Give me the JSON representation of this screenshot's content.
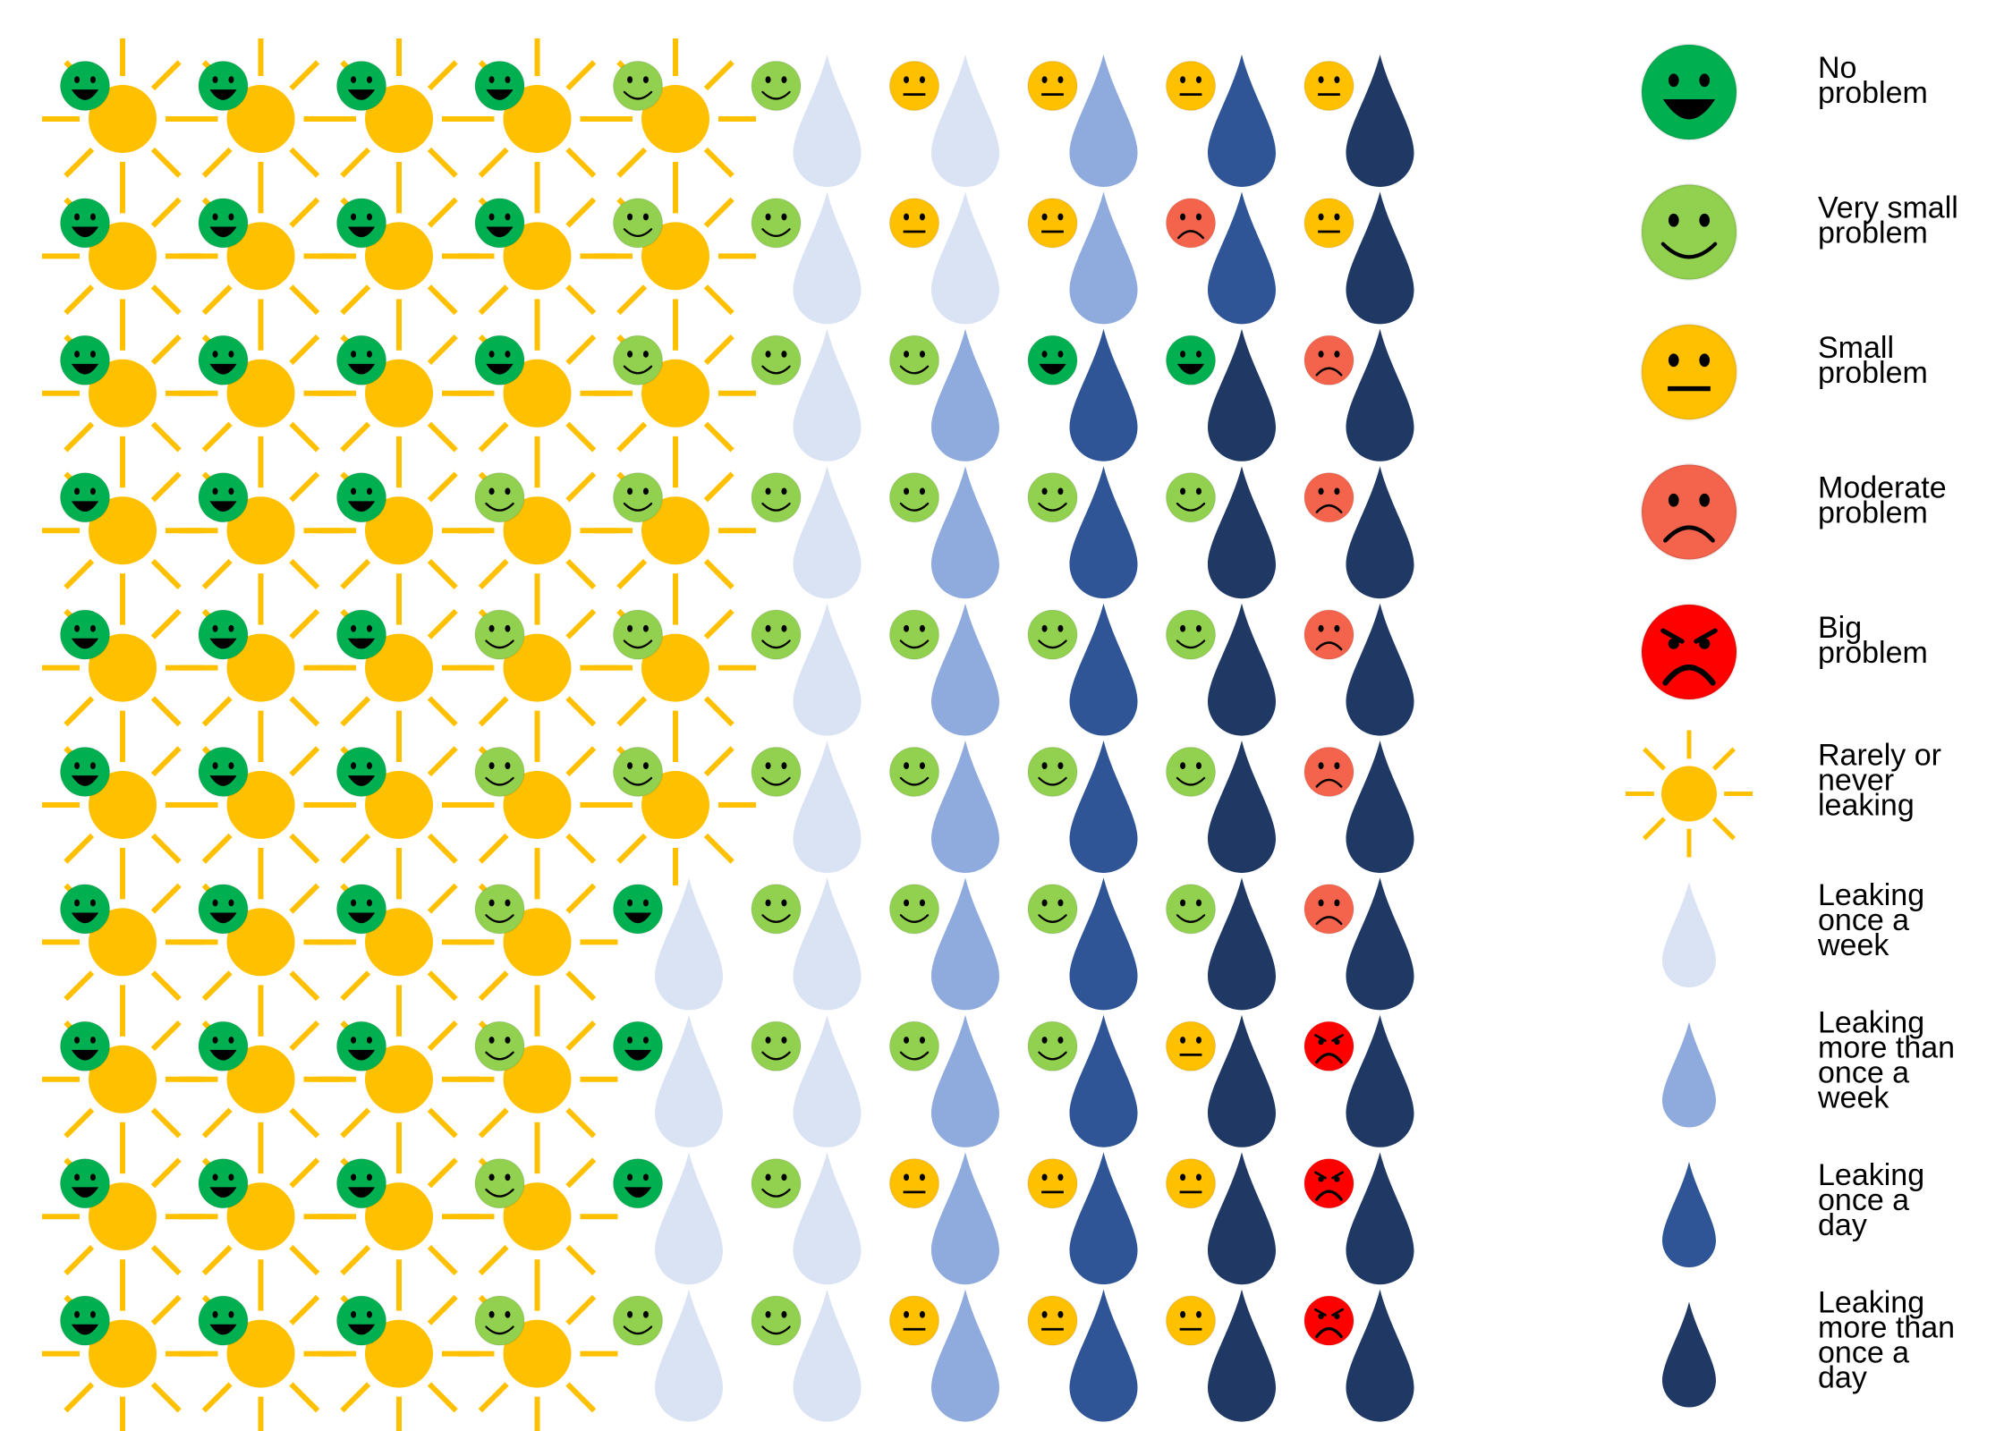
{
  "chart_data": {
    "type": "pictogram-grid",
    "title": "",
    "colors": {
      "sun": "#FFC000",
      "no_problem": "#00B050",
      "very_small_problem": "#92D050",
      "small_problem": "#FFC000",
      "moderate_problem": "#F4644C",
      "big_problem": "#FF0000",
      "leak_week": "#DAE3F3",
      "leak_more_week": "#8FAADC",
      "leak_day": "#2F5597",
      "leak_more_day": "#1F3864"
    },
    "leakage_categories": [
      "sun",
      "leak_week",
      "leak_more_week",
      "leak_day",
      "leak_more_day"
    ],
    "problem_categories": [
      "no_problem",
      "very_small_problem",
      "small_problem",
      "moderate_problem",
      "big_problem"
    ],
    "grid_leakage": [
      [
        "sun",
        "sun",
        "sun",
        "sun",
        "sun",
        "leak_week",
        "leak_week",
        "leak_more_week",
        "leak_day",
        "leak_more_day"
      ],
      [
        "sun",
        "sun",
        "sun",
        "sun",
        "sun",
        "leak_week",
        "leak_week",
        "leak_more_week",
        "leak_day",
        "leak_more_day"
      ],
      [
        "sun",
        "sun",
        "sun",
        "sun",
        "sun",
        "leak_week",
        "leak_more_week",
        "leak_day",
        "leak_more_day",
        "leak_more_day"
      ],
      [
        "sun",
        "sun",
        "sun",
        "sun",
        "sun",
        "leak_week",
        "leak_more_week",
        "leak_day",
        "leak_more_day",
        "leak_more_day"
      ],
      [
        "sun",
        "sun",
        "sun",
        "sun",
        "sun",
        "leak_week",
        "leak_more_week",
        "leak_day",
        "leak_more_day",
        "leak_more_day"
      ],
      [
        "sun",
        "sun",
        "sun",
        "sun",
        "sun",
        "leak_week",
        "leak_more_week",
        "leak_day",
        "leak_more_day",
        "leak_more_day"
      ],
      [
        "sun",
        "sun",
        "sun",
        "sun",
        "leak_week",
        "leak_week",
        "leak_more_week",
        "leak_day",
        "leak_more_day",
        "leak_more_day"
      ],
      [
        "sun",
        "sun",
        "sun",
        "sun",
        "leak_week",
        "leak_week",
        "leak_more_week",
        "leak_day",
        "leak_more_day",
        "leak_more_day"
      ],
      [
        "sun",
        "sun",
        "sun",
        "sun",
        "leak_week",
        "leak_week",
        "leak_more_week",
        "leak_day",
        "leak_more_day",
        "leak_more_day"
      ],
      [
        "sun",
        "sun",
        "sun",
        "sun",
        "leak_week",
        "leak_week",
        "leak_more_week",
        "leak_day",
        "leak_more_day",
        "leak_more_day"
      ]
    ],
    "grid_problem": [
      [
        "no_problem",
        "no_problem",
        "no_problem",
        "no_problem",
        "very_small_problem",
        "very_small_problem",
        "small_problem",
        "small_problem",
        "small_problem",
        "small_problem"
      ],
      [
        "no_problem",
        "no_problem",
        "no_problem",
        "no_problem",
        "very_small_problem",
        "very_small_problem",
        "small_problem",
        "small_problem",
        "moderate_problem",
        "small_problem"
      ],
      [
        "no_problem",
        "no_problem",
        "no_problem",
        "no_problem",
        "very_small_problem",
        "very_small_problem",
        "very_small_problem",
        "no_problem",
        "no_problem",
        "moderate_problem"
      ],
      [
        "no_problem",
        "no_problem",
        "no_problem",
        "very_small_problem",
        "very_small_problem",
        "very_small_problem",
        "very_small_problem",
        "very_small_problem",
        "very_small_problem",
        "moderate_problem"
      ],
      [
        "no_problem",
        "no_problem",
        "no_problem",
        "very_small_problem",
        "very_small_problem",
        "very_small_problem",
        "very_small_problem",
        "very_small_problem",
        "very_small_problem",
        "moderate_problem"
      ],
      [
        "no_problem",
        "no_problem",
        "no_problem",
        "very_small_problem",
        "very_small_problem",
        "very_small_problem",
        "very_small_problem",
        "very_small_problem",
        "very_small_problem",
        "moderate_problem"
      ],
      [
        "no_problem",
        "no_problem",
        "no_problem",
        "very_small_problem",
        "no_problem",
        "very_small_problem",
        "very_small_problem",
        "very_small_problem",
        "very_small_problem",
        "moderate_problem"
      ],
      [
        "no_problem",
        "no_problem",
        "no_problem",
        "very_small_problem",
        "no_problem",
        "very_small_problem",
        "very_small_problem",
        "very_small_problem",
        "small_problem",
        "big_problem"
      ],
      [
        "no_problem",
        "no_problem",
        "no_problem",
        "very_small_problem",
        "no_problem",
        "very_small_problem",
        "small_problem",
        "small_problem",
        "small_problem",
        "big_problem"
      ],
      [
        "no_problem",
        "no_problem",
        "no_problem",
        "very_small_problem",
        "very_small_problem",
        "very_small_problem",
        "small_problem",
        "small_problem",
        "small_problem",
        "big_problem"
      ]
    ],
    "legend": [
      {
        "key": "no_problem",
        "kind": "face",
        "lines": [
          "No",
          "problem"
        ]
      },
      {
        "key": "very_small_problem",
        "kind": "face",
        "lines": [
          "Very small",
          "problem"
        ]
      },
      {
        "key": "small_problem",
        "kind": "face",
        "lines": [
          "Small",
          "problem"
        ]
      },
      {
        "key": "moderate_problem",
        "kind": "face",
        "lines": [
          "Moderate",
          "problem"
        ]
      },
      {
        "key": "big_problem",
        "kind": "face",
        "lines": [
          "Big",
          "problem"
        ]
      },
      {
        "key": "sun",
        "kind": "sun",
        "lines": [
          "Rarely or",
          "never",
          "leaking"
        ]
      },
      {
        "key": "leak_week",
        "kind": "drop",
        "lines": [
          "Leaking",
          "once a",
          "week"
        ]
      },
      {
        "key": "leak_more_week",
        "kind": "drop",
        "lines": [
          "Leaking",
          "more than",
          "once a",
          "week"
        ]
      },
      {
        "key": "leak_day",
        "kind": "drop",
        "lines": [
          "Leaking",
          "once a",
          "day"
        ]
      },
      {
        "key": "leak_more_day",
        "kind": "drop",
        "lines": [
          "Leaking",
          "more than",
          "once a",
          "day"
        ]
      }
    ]
  }
}
